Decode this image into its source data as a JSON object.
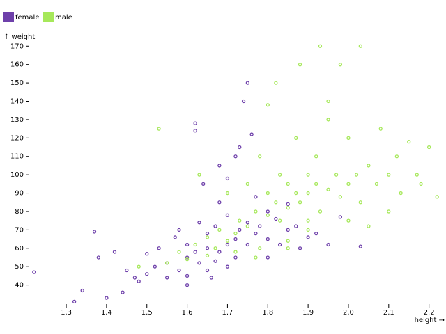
{
  "chart_data": {
    "type": "scatter",
    "x_label": "height →",
    "y_label": "↑ weight",
    "xlim": [
      1.21,
      2.23
    ],
    "ylim": [
      30,
      172
    ],
    "xticks": [
      1.3,
      1.4,
      1.5,
      1.6,
      1.7,
      1.8,
      1.9,
      {
        "value": 2,
        "label": "2.0"
      },
      2.1,
      2.2
    ],
    "yticks": [
      40,
      50,
      60,
      70,
      80,
      90,
      100,
      110,
      120,
      130,
      140,
      150,
      160,
      170
    ],
    "series": [
      {
        "name": "female",
        "color": "#6e40aa",
        "x": [
          1.22,
          1.32,
          1.34,
          1.37,
          1.38,
          1.4,
          1.42,
          1.44,
          1.45,
          1.47,
          1.48,
          1.5,
          1.5,
          1.52,
          1.53,
          1.55,
          1.55,
          1.57,
          1.58,
          1.6,
          1.6,
          1.6,
          1.62,
          1.62,
          1.63,
          1.63,
          1.65,
          1.65,
          1.65,
          1.67,
          1.67,
          1.68,
          1.68,
          1.7,
          1.7,
          1.7,
          1.72,
          1.72,
          1.73,
          1.73,
          1.75,
          1.75,
          1.75,
          1.77,
          1.77,
          1.78,
          1.8,
          1.8,
          1.8,
          1.82,
          1.83,
          1.85,
          1.85,
          1.87,
          1.88,
          1.9,
          1.92,
          1.95,
          1.98,
          2.03,
          1.62,
          1.68,
          1.74,
          1.76,
          1.58,
          1.64,
          1.7,
          1.72,
          1.66,
          1.6
        ],
        "values": [
          47,
          31,
          37,
          69,
          55,
          33,
          58,
          36,
          48,
          44,
          42,
          57,
          46,
          50,
          60,
          52,
          44,
          66,
          48,
          55,
          62,
          45,
          58,
          124,
          52,
          74,
          60,
          48,
          68,
          53,
          72,
          58,
          85,
          62,
          50,
          78,
          65,
          55,
          70,
          115,
          62,
          150,
          74,
          68,
          88,
          72,
          65,
          80,
          55,
          76,
          62,
          70,
          84,
          72,
          60,
          66,
          68,
          62,
          77,
          61,
          128,
          105,
          140,
          122,
          70,
          95,
          98,
          110,
          44,
          40
        ]
      },
      {
        "name": "male",
        "color": "#a6e85a",
        "x": [
          1.48,
          1.53,
          1.55,
          1.58,
          1.6,
          1.62,
          1.63,
          1.65,
          1.65,
          1.67,
          1.68,
          1.7,
          1.7,
          1.72,
          1.73,
          1.75,
          1.75,
          1.77,
          1.78,
          1.78,
          1.8,
          1.8,
          1.8,
          1.82,
          1.83,
          1.83,
          1.85,
          1.85,
          1.85,
          1.87,
          1.87,
          1.88,
          1.88,
          1.9,
          1.9,
          1.9,
          1.92,
          1.92,
          1.93,
          1.93,
          1.95,
          1.95,
          1.97,
          1.98,
          1.98,
          2.0,
          2.0,
          2.02,
          2.03,
          2.03,
          2.05,
          2.07,
          2.08,
          2.1,
          2.1,
          2.12,
          2.13,
          2.15,
          2.17,
          2.2,
          2.22,
          2.18,
          1.82,
          1.85,
          1.9,
          1.95,
          2.0,
          2.05,
          1.77,
          1.72
        ],
        "values": [
          50,
          125,
          52,
          58,
          54,
          62,
          100,
          56,
          66,
          60,
          70,
          64,
          90,
          68,
          75,
          72,
          95,
          80,
          60,
          110,
          78,
          90,
          138,
          85,
          75,
          100,
          82,
          95,
          60,
          90,
          120,
          85,
          160,
          90,
          100,
          75,
          95,
          110,
          170,
          80,
          92,
          130,
          100,
          88,
          160,
          95,
          120,
          100,
          170,
          85,
          105,
          95,
          125,
          100,
          80,
          110,
          90,
          118,
          100,
          115,
          88,
          95,
          150,
          64,
          70,
          140,
          75,
          72,
          55,
          58
        ]
      }
    ]
  }
}
